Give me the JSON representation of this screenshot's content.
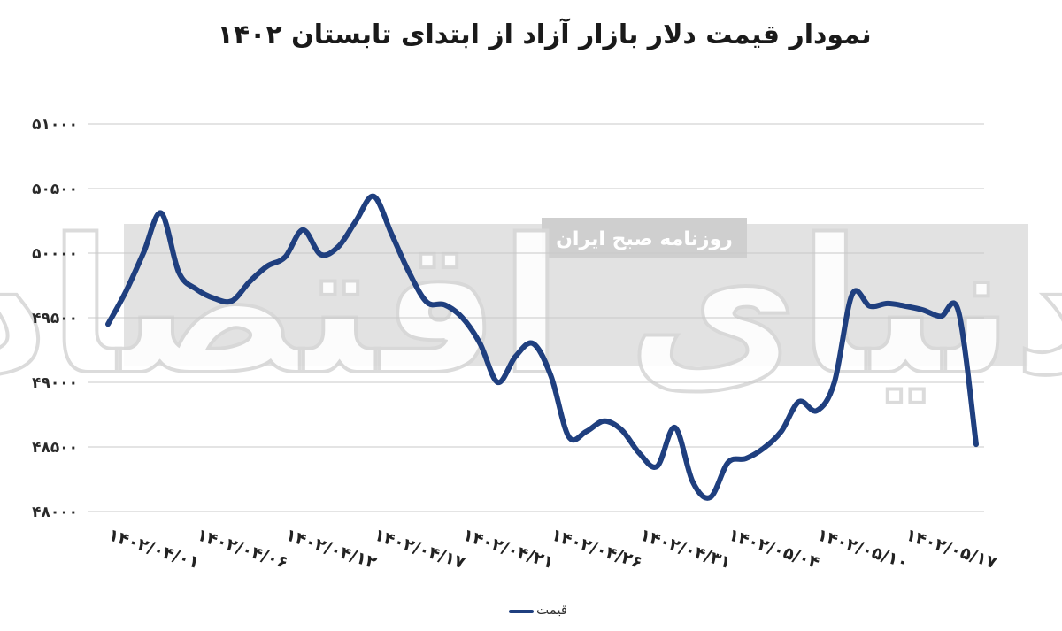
{
  "title": "نمودار قیمت دلار بازار آزاد از ابتدای تابستان ۱۴۰۲",
  "watermark": {
    "band_text": "روزنامه صبح ایران",
    "logo_text": "دنیای اقتصاد"
  },
  "colors": {
    "line": "#1f3f7f",
    "band": "#e2e2e2",
    "grid": "#c8c8c8"
  },
  "legend": {
    "label": "قیمت"
  },
  "chart_data": {
    "type": "line",
    "title": "نمودار قیمت دلار بازار آزاد از ابتدای تابستان ۱۴۰۲",
    "xlabel": "",
    "ylabel": "",
    "ylim": [
      48000,
      51000
    ],
    "yticks": [
      "۴۸۰۰۰",
      "۴۸۵۰۰",
      "۴۹۰۰۰",
      "۴۹۵۰۰",
      "۵۰۰۰۰",
      "۵۰۵۰۰",
      "۵۱۰۰۰"
    ],
    "ytick_values": [
      48000,
      48500,
      49000,
      49500,
      50000,
      50500,
      51000
    ],
    "xtick_labels": [
      "۱۴۰۲/۰۴/۰۱",
      "۱۴۰۲/۰۴/۰۶",
      "۱۴۰۲/۰۴/۱۲",
      "۱۴۰۲/۰۴/۱۷",
      "۱۴۰۲/۰۴/۲۱",
      "۱۴۰۲/۰۴/۲۶",
      "۱۴۰۲/۰۴/۳۱",
      "۱۴۰۲/۰۵/۰۴",
      "۱۴۰۲/۰۵/۱۰",
      "۱۴۰۲/۰۵/۱۷"
    ],
    "xtick_index": [
      0,
      5,
      10,
      15,
      20,
      25,
      30,
      35,
      40,
      45
    ],
    "grid": true,
    "legend": "bottom",
    "series": [
      {
        "name": "قیمت",
        "values": [
          49450,
          49700,
          50000,
          50310,
          49850,
          49720,
          49650,
          49630,
          49780,
          49900,
          49970,
          50180,
          49990,
          50050,
          50250,
          50440,
          50150,
          49850,
          49620,
          49600,
          49500,
          49300,
          49000,
          49200,
          49300,
          49050,
          48580,
          48620,
          48700,
          48630,
          48450,
          48350,
          48650,
          48230,
          48110,
          48380,
          48410,
          48490,
          48620,
          48850,
          48780,
          49000,
          49680,
          49590,
          49610,
          49590,
          49560,
          49510,
          49550,
          48520
        ]
      }
    ]
  }
}
